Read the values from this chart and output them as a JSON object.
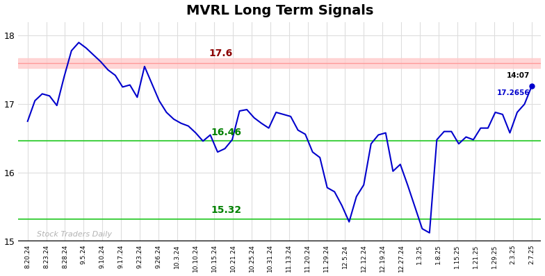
{
  "title": "MVRL Long Term Signals",
  "title_fontsize": 14,
  "background_color": "#ffffff",
  "line_color": "#0000cc",
  "line_width": 1.5,
  "ylim": [
    15.0,
    18.2
  ],
  "yticks": [
    15,
    16,
    17,
    18
  ],
  "red_line": 17.6,
  "green_line_upper": 16.46,
  "green_line_lower": 15.32,
  "red_line_label": "17.6",
  "green_upper_label": "16.46",
  "green_lower_label": "15.32",
  "watermark": "Stock Traders Daily",
  "last_label_time": "14:07",
  "last_label_value": "17.2656",
  "x_labels": [
    "8.20.24",
    "8.23.24",
    "8.28.24",
    "9.5.24",
    "9.10.24",
    "9.17.24",
    "9.23.24",
    "9.26.24",
    "10.3.24",
    "10.10.24",
    "10.15.24",
    "10.21.24",
    "10.25.24",
    "10.31.24",
    "11.13.24",
    "11.20.24",
    "11.29.24",
    "12.5.24",
    "12.12.24",
    "12.19.24",
    "12.27.24",
    "1.3.25",
    "1.8.25",
    "1.15.25",
    "1.21.25",
    "1.29.25",
    "2.3.25",
    "2.7.25"
  ],
  "y_values": [
    16.75,
    17.05,
    17.15,
    17.12,
    16.98,
    17.4,
    17.78,
    17.9,
    17.82,
    17.72,
    17.62,
    17.5,
    17.42,
    17.25,
    17.28,
    17.1,
    17.55,
    17.3,
    17.05,
    16.88,
    16.78,
    16.72,
    16.68,
    16.58,
    16.46,
    16.55,
    16.3,
    16.35,
    16.48,
    16.9,
    16.92,
    16.8,
    16.72,
    16.65,
    16.88,
    16.85,
    16.82,
    16.62,
    16.56,
    16.3,
    16.22,
    15.78,
    15.72,
    15.52,
    15.28,
    15.65,
    15.82,
    16.42,
    16.55,
    16.58,
    16.02,
    16.12,
    15.82,
    15.5,
    15.18,
    15.12,
    16.48,
    16.6,
    16.6,
    16.42,
    16.52,
    16.48,
    16.65,
    16.65,
    16.88,
    16.85,
    16.58,
    16.88,
    17.0,
    17.2656
  ]
}
